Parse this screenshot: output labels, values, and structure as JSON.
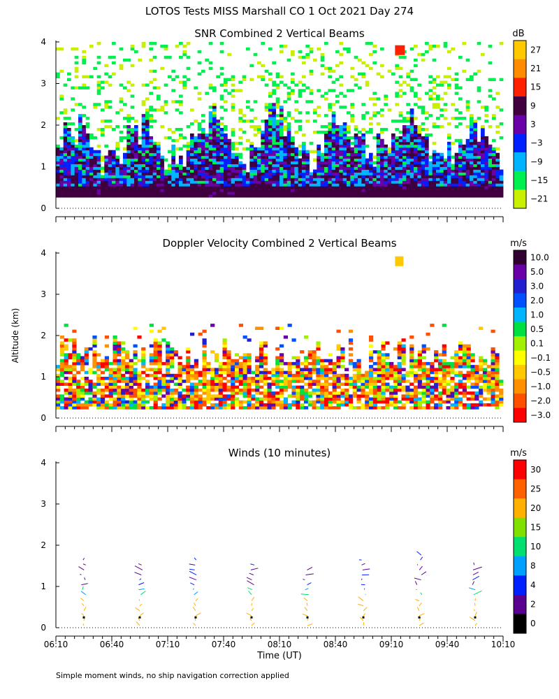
{
  "page": {
    "title": "LOTOS Tests MISS Marshall CO   1 Oct 2021 Day 274",
    "ylabel": "Altitude (km)",
    "xlabel": "Time (UT)",
    "footnote": "Simple moment winds, no ship navigation correction applied"
  },
  "chart_data": [
    {
      "id": "snr",
      "type": "heatmap",
      "title": "SNR Combined 2 Vertical Beams",
      "xlabel": "Time (UT)",
      "ylabel": "Altitude (km)",
      "xlim": [
        "06:10",
        "10:10"
      ],
      "ylim": [
        0,
        4
      ],
      "y_ticks": [
        0,
        1,
        2,
        3,
        4
      ],
      "colorbar": {
        "unit": "dB",
        "labels": [
          "27",
          "21",
          "15",
          "9",
          "3",
          "−3",
          "−9",
          "−15",
          "−21"
        ],
        "colors": [
          "#ffc800",
          "#ff8c00",
          "#ff2000",
          "#400040",
          "#6a00a8",
          "#0020ff",
          "#00b4ff",
          "#00f050",
          "#c8f000"
        ]
      }
    },
    {
      "id": "doppler",
      "type": "heatmap",
      "title": "Doppler Velocity Combined 2 Vertical Beams",
      "xlabel": "Time (UT)",
      "ylabel": "Altitude (km)",
      "xlim": [
        "06:10",
        "10:10"
      ],
      "ylim": [
        0,
        4
      ],
      "y_ticks": [
        0,
        1,
        2,
        3,
        4
      ],
      "colorbar": {
        "unit": "m/s",
        "labels": [
          "10.0",
          "5.0",
          "3.0",
          "2.0",
          "1.0",
          "0.5",
          "0.1",
          "−0.1",
          "−0.5",
          "−1.0",
          "−2.0",
          "−3.0"
        ],
        "colors": [
          "#300030",
          "#6a00a8",
          "#2020d0",
          "#0050ff",
          "#00b4ff",
          "#00e040",
          "#a0f000",
          "#ffff00",
          "#ffc800",
          "#ff9000",
          "#ff5000",
          "#ff0000"
        ]
      }
    },
    {
      "id": "winds",
      "type": "scatter",
      "title": "Winds (10 minutes)",
      "xlabel": "Time (UT)",
      "ylabel": "Altitude (km)",
      "xlim": [
        "06:10",
        "10:10"
      ],
      "ylim": [
        0,
        4
      ],
      "y_ticks": [
        0,
        1,
        2,
        3,
        4
      ],
      "x_ticks": [
        "06:10",
        "06:40",
        "07:10",
        "07:40",
        "08:10",
        "08:40",
        "09:10",
        "09:40",
        "10:10"
      ],
      "profile_times": [
        "06:25",
        "06:55",
        "07:25",
        "07:55",
        "08:25",
        "08:55",
        "09:25",
        "09:55"
      ],
      "colorbar": {
        "unit": "m/s",
        "labels": [
          "30",
          "25",
          "20",
          "15",
          "10",
          "8",
          "4",
          "2",
          "0"
        ],
        "colors": [
          "#ff0000",
          "#ff6000",
          "#ffb000",
          "#80e000",
          "#00e070",
          "#00a0ff",
          "#0020ff",
          "#5a0090",
          "#000000"
        ]
      }
    }
  ]
}
